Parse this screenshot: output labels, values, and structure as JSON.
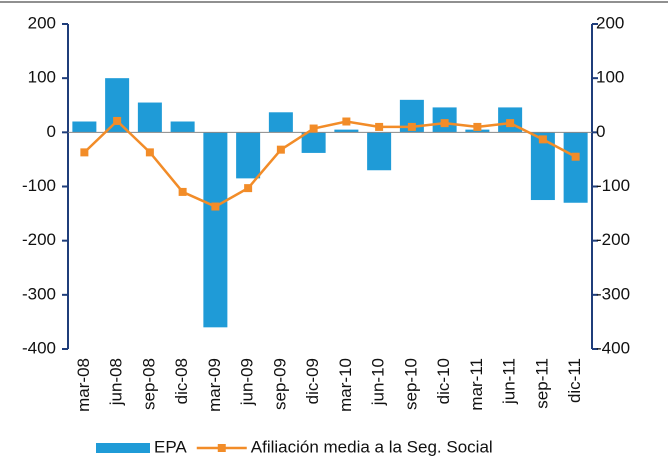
{
  "chart_data": {
    "type": "bar+line",
    "categories": [
      "mar-08",
      "jun-08",
      "sep-08",
      "dic-08",
      "mar-09",
      "jun-09",
      "sep-09",
      "dic-09",
      "mar-10",
      "jun-10",
      "sep-10",
      "dic-10",
      "mar-11",
      "jun-11",
      "sep-11",
      "dic-11"
    ],
    "series": [
      {
        "name": "EPA",
        "type": "bar",
        "color": "#1f9bd7",
        "values": [
          20,
          100,
          55,
          20,
          -360,
          -85,
          37,
          -38,
          5,
          -70,
          60,
          46,
          5,
          46,
          -125,
          -130
        ]
      },
      {
        "name": "Afiliación media a la Seg. Social",
        "type": "line",
        "axis": "y2",
        "color": "#f28c28",
        "values": [
          -37,
          21,
          -37,
          -110,
          -137,
          -103,
          -32,
          7,
          20,
          10,
          10,
          17,
          10,
          17,
          -13,
          -45
        ]
      }
    ],
    "ylim": [
      -400,
      200
    ],
    "yticks": [
      -400,
      -300,
      -200,
      -100,
      0,
      100,
      200
    ],
    "y2lim": [
      -400,
      200
    ],
    "y2ticks": [
      -400,
      -300,
      -200,
      -100,
      0,
      100,
      200
    ],
    "legend": "bottom"
  }
}
